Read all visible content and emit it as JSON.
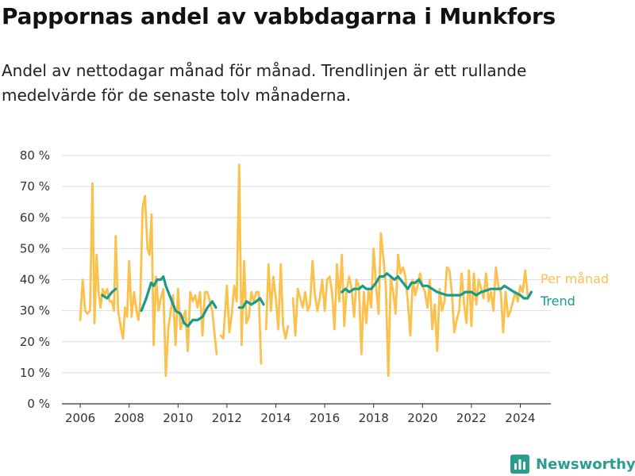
{
  "title": "Pappornas andel av vabbdagarna i Munkfors",
  "subtitle": "Andel av nettodagar månad för månad. Trendlinjen är ett rullande medelvärde för de senaste tolv månaderna.",
  "brand": {
    "name": "Newsworthy",
    "color": "#2a9d8f",
    "icon": "bar-chart-icon"
  },
  "colors": {
    "per_manad": "#fbc14d",
    "trend": "#1a9a8a",
    "grid": "#dddddd",
    "axis": "#333333"
  },
  "chart_data": {
    "type": "line",
    "title": "",
    "xlabel": "",
    "ylabel": "",
    "xlim": [
      2005.25,
      2025.25
    ],
    "ylim": [
      0,
      80
    ],
    "y_ticks": [
      0,
      10,
      20,
      30,
      40,
      50,
      60,
      70,
      80
    ],
    "y_tick_labels": [
      "0 %",
      "10 %",
      "20 %",
      "30 %",
      "40 %",
      "50 %",
      "60 %",
      "70 %",
      "80 %"
    ],
    "x_ticks": [
      2006,
      2008,
      2010,
      2012,
      2014,
      2016,
      2018,
      2020,
      2022,
      2024
    ],
    "x_tick_labels": [
      "2006",
      "2008",
      "2010",
      "2012",
      "2014",
      "2016",
      "2018",
      "2020",
      "2022",
      "2024"
    ],
    "grid": "horizontal",
    "legend": "direct labels at line ends (right)",
    "series": [
      {
        "name": "Per månad",
        "color": "#fbc14d",
        "segments": [
          [
            [
              2006.0,
              27
            ],
            [
              2006.1,
              40
            ],
            [
              2006.2,
              30
            ],
            [
              2006.3,
              29
            ],
            [
              2006.4,
              30
            ],
            [
              2006.5,
              71
            ],
            [
              2006.58,
              26
            ],
            [
              2006.67,
              48
            ],
            [
              2006.75,
              36
            ],
            [
              2006.83,
              31
            ],
            [
              2006.92,
              37
            ],
            [
              2007.0,
              35
            ],
            [
              2007.1,
              37
            ],
            [
              2007.2,
              33
            ],
            [
              2007.3,
              33
            ],
            [
              2007.38,
              30
            ],
            [
              2007.45,
              54
            ],
            [
              2007.55,
              30
            ],
            [
              2007.65,
              25
            ],
            [
              2007.75,
              21
            ],
            [
              2007.83,
              31
            ],
            [
              2007.92,
              28
            ],
            [
              2008.0,
              46
            ],
            [
              2008.1,
              28
            ],
            [
              2008.2,
              36
            ],
            [
              2008.3,
              30
            ],
            [
              2008.38,
              27
            ],
            [
              2008.45,
              32
            ],
            [
              2008.55,
              63
            ],
            [
              2008.65,
              67
            ],
            [
              2008.75,
              50
            ],
            [
              2008.83,
              48
            ],
            [
              2008.92,
              61
            ],
            [
              2009.0,
              19
            ],
            [
              2009.1,
              41
            ],
            [
              2009.2,
              30
            ],
            [
              2009.3,
              34
            ],
            [
              2009.4,
              37
            ],
            [
              2009.5,
              9
            ],
            [
              2009.6,
              24
            ],
            [
              2009.7,
              30
            ],
            [
              2009.8,
              35
            ],
            [
              2009.9,
              19
            ],
            [
              2010.0,
              37
            ],
            [
              2010.1,
              24
            ],
            [
              2010.2,
              27
            ],
            [
              2010.3,
              30
            ],
            [
              2010.4,
              17
            ],
            [
              2010.5,
              36
            ],
            [
              2010.6,
              33
            ],
            [
              2010.7,
              35
            ],
            [
              2010.8,
              31
            ],
            [
              2010.9,
              36
            ],
            [
              2011.0,
              22
            ],
            [
              2011.1,
              36
            ],
            [
              2011.2,
              36
            ],
            [
              2011.3,
              33
            ],
            [
              2011.4,
              30
            ],
            [
              2011.5,
              22
            ],
            [
              2011.58,
              16
            ]
          ],
          [
            [
              2011.75,
              22
            ],
            [
              2011.85,
              21
            ],
            [
              2012.0,
              38
            ],
            [
              2012.1,
              23
            ],
            [
              2012.2,
              29
            ],
            [
              2012.3,
              38
            ],
            [
              2012.4,
              33
            ],
            [
              2012.5,
              77
            ],
            [
              2012.6,
              19
            ],
            [
              2012.7,
              46
            ],
            [
              2012.8,
              26
            ],
            [
              2012.9,
              28
            ],
            [
              2013.0,
              36
            ],
            [
              2013.1,
              33
            ],
            [
              2013.2,
              36
            ],
            [
              2013.3,
              36
            ],
            [
              2013.4,
              13
            ]
          ],
          [
            [
              2013.6,
              24
            ],
            [
              2013.7,
              45
            ],
            [
              2013.8,
              30
            ],
            [
              2013.9,
              41
            ],
            [
              2014.0,
              34
            ],
            [
              2014.1,
              24
            ],
            [
              2014.2,
              45
            ],
            [
              2014.3,
              25
            ],
            [
              2014.4,
              21
            ],
            [
              2014.5,
              25
            ]
          ],
          [
            [
              2014.7,
              34
            ],
            [
              2014.8,
              22
            ],
            [
              2014.9,
              37
            ],
            [
              2015.0,
              34
            ],
            [
              2015.1,
              31
            ],
            [
              2015.2,
              36
            ],
            [
              2015.3,
              30
            ],
            [
              2015.4,
              32
            ],
            [
              2015.5,
              46
            ],
            [
              2015.6,
              35
            ],
            [
              2015.7,
              30
            ],
            [
              2015.8,
              34
            ],
            [
              2015.9,
              40
            ],
            [
              2016.0,
              30
            ],
            [
              2016.1,
              40
            ],
            [
              2016.2,
              41
            ],
            [
              2016.3,
              36
            ],
            [
              2016.4,
              24
            ],
            [
              2016.5,
              45
            ],
            [
              2016.6,
              33
            ],
            [
              2016.7,
              48
            ],
            [
              2016.8,
              25
            ],
            [
              2016.9,
              37
            ],
            [
              2017.0,
              41
            ],
            [
              2017.1,
              37
            ],
            [
              2017.2,
              28
            ],
            [
              2017.3,
              40
            ],
            [
              2017.4,
              38
            ],
            [
              2017.5,
              16
            ],
            [
              2017.6,
              36
            ],
            [
              2017.7,
              26
            ],
            [
              2017.8,
              37
            ],
            [
              2017.9,
              31
            ],
            [
              2018.0,
              50
            ],
            [
              2018.1,
              38
            ],
            [
              2018.2,
              29
            ],
            [
              2018.3,
              55
            ],
            [
              2018.4,
              47
            ],
            [
              2018.5,
              38
            ],
            [
              2018.6,
              9
            ],
            [
              2018.7,
              41
            ],
            [
              2018.8,
              36
            ],
            [
              2018.9,
              29
            ],
            [
              2019.0,
              48
            ],
            [
              2019.1,
              42
            ],
            [
              2019.2,
              44
            ],
            [
              2019.3,
              41
            ],
            [
              2019.4,
              33
            ],
            [
              2019.5,
              22
            ],
            [
              2019.6,
              40
            ],
            [
              2019.7,
              35
            ],
            [
              2019.8,
              38
            ],
            [
              2019.9,
              42
            ],
            [
              2020.0,
              38
            ],
            [
              2020.1,
              36
            ],
            [
              2020.2,
              31
            ],
            [
              2020.3,
              40
            ],
            [
              2020.4,
              24
            ],
            [
              2020.5,
              32
            ],
            [
              2020.6,
              17
            ],
            [
              2020.7,
              37
            ],
            [
              2020.8,
              30
            ],
            [
              2020.9,
              33
            ],
            [
              2021.0,
              44
            ],
            [
              2021.1,
              43
            ],
            [
              2021.2,
              36
            ],
            [
              2021.3,
              23
            ],
            [
              2021.4,
              27
            ],
            [
              2021.5,
              30
            ],
            [
              2021.6,
              42
            ],
            [
              2021.7,
              32
            ],
            [
              2021.8,
              26
            ],
            [
              2021.9,
              43
            ],
            [
              2022.0,
              25
            ],
            [
              2022.1,
              42
            ],
            [
              2022.2,
              32
            ],
            [
              2022.3,
              40
            ],
            [
              2022.4,
              37
            ],
            [
              2022.5,
              34
            ],
            [
              2022.6,
              42
            ],
            [
              2022.7,
              33
            ],
            [
              2022.8,
              36
            ],
            [
              2022.9,
              30
            ],
            [
              2023.0,
              44
            ],
            [
              2023.1,
              38
            ],
            [
              2023.2,
              36
            ],
            [
              2023.3,
              23
            ],
            [
              2023.4,
              36
            ],
            [
              2023.5,
              28
            ],
            [
              2023.6,
              30
            ],
            [
              2023.7,
              33
            ],
            [
              2023.8,
              36
            ],
            [
              2023.9,
              33
            ],
            [
              2024.0,
              38
            ],
            [
              2024.1,
              36
            ],
            [
              2024.2,
              43
            ],
            [
              2024.3,
              35
            ]
          ]
        ]
      },
      {
        "name": "Trend",
        "color": "#1a9a8a",
        "segments": [
          [
            [
              2006.9,
              35
            ],
            [
              2007.1,
              34
            ],
            [
              2007.3,
              36
            ],
            [
              2007.45,
              37
            ]
          ],
          [
            [
              2008.5,
              30
            ],
            [
              2008.7,
              34
            ],
            [
              2008.9,
              39
            ],
            [
              2009.0,
              38
            ],
            [
              2009.15,
              40
            ],
            [
              2009.3,
              40
            ],
            [
              2009.4,
              41
            ],
            [
              2009.5,
              38
            ],
            [
              2009.7,
              34
            ],
            [
              2009.9,
              30
            ],
            [
              2010.1,
              29
            ],
            [
              2010.25,
              26
            ],
            [
              2010.4,
              25
            ],
            [
              2010.6,
              27
            ],
            [
              2010.8,
              27
            ],
            [
              2011.0,
              28
            ],
            [
              2011.2,
              31
            ],
            [
              2011.4,
              33
            ],
            [
              2011.55,
              31
            ]
          ],
          [
            [
              2012.5,
              31
            ],
            [
              2012.65,
              31
            ],
            [
              2012.8,
              33
            ],
            [
              2013.0,
              32
            ],
            [
              2013.2,
              33
            ],
            [
              2013.35,
              34
            ],
            [
              2013.5,
              32
            ]
          ],
          [
            [
              2016.7,
              36
            ],
            [
              2016.85,
              37
            ],
            [
              2017.0,
              36
            ],
            [
              2017.2,
              37
            ],
            [
              2017.4,
              37
            ],
            [
              2017.55,
              38
            ],
            [
              2017.7,
              37
            ],
            [
              2017.9,
              37
            ],
            [
              2018.1,
              39
            ],
            [
              2018.25,
              41
            ],
            [
              2018.4,
              41
            ],
            [
              2018.55,
              42
            ],
            [
              2018.7,
              41
            ],
            [
              2018.85,
              40
            ],
            [
              2019.0,
              41
            ],
            [
              2019.2,
              39
            ],
            [
              2019.4,
              37
            ],
            [
              2019.55,
              39
            ],
            [
              2019.7,
              39
            ],
            [
              2019.85,
              40
            ],
            [
              2020.0,
              38
            ],
            [
              2020.2,
              38
            ],
            [
              2020.4,
              37
            ],
            [
              2020.6,
              36
            ],
            [
              2020.8,
              35.5
            ],
            [
              2021.0,
              35
            ],
            [
              2021.3,
              35
            ],
            [
              2021.55,
              35
            ],
            [
              2021.75,
              36
            ],
            [
              2022.0,
              36
            ],
            [
              2022.2,
              35
            ],
            [
              2022.4,
              36
            ],
            [
              2022.6,
              36.5
            ],
            [
              2022.8,
              37
            ],
            [
              2023.0,
              37
            ],
            [
              2023.2,
              37
            ],
            [
              2023.35,
              38
            ],
            [
              2023.55,
              37
            ],
            [
              2023.75,
              36
            ],
            [
              2024.0,
              35
            ],
            [
              2024.15,
              34
            ],
            [
              2024.3,
              34
            ],
            [
              2024.45,
              36
            ]
          ]
        ]
      }
    ],
    "legend_labels": [
      "Per månad",
      "Trend"
    ]
  }
}
